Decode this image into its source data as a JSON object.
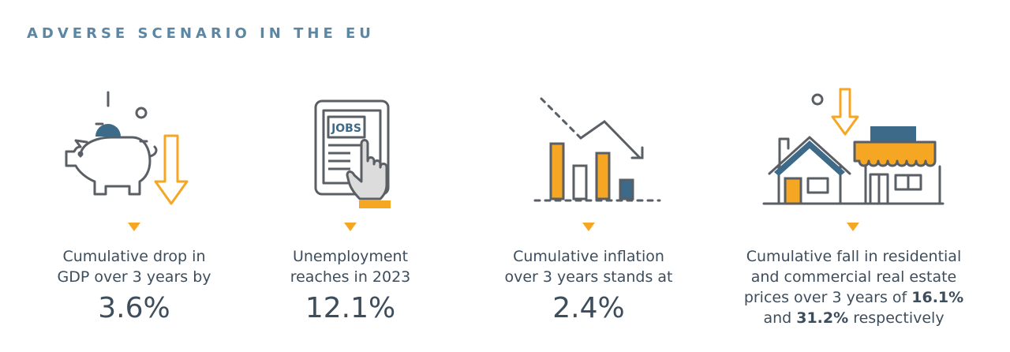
{
  "title": "ADVERSE SCENARIO IN THE EU",
  "colors": {
    "accent": "#f5a623",
    "navy": "#3e6a8a",
    "outline": "#5a5f66",
    "title": "#5b87a5"
  },
  "items": [
    {
      "icon": "piggy-bank-down-icon",
      "line1": "Cumulative drop in",
      "line2": "GDP over 3 years by",
      "value": "3.6%"
    },
    {
      "icon": "tablet-jobs-icon",
      "line1": "Unemployment",
      "line2": "reaches in 2023",
      "value": "12.1%"
    },
    {
      "icon": "inflation-chart-icon",
      "line1": "Cumulative inflation",
      "line2": "over 3 years stands at",
      "value": "2.4%"
    },
    {
      "icon": "real-estate-down-icon",
      "line1": "Cumulative fall in residential",
      "line2": "and commercial real estate",
      "line3a": "prices over 3 years of ",
      "value1": "16.1%",
      "line4a": "and ",
      "value2": "31.2%",
      "line4b": " respectively"
    }
  ]
}
